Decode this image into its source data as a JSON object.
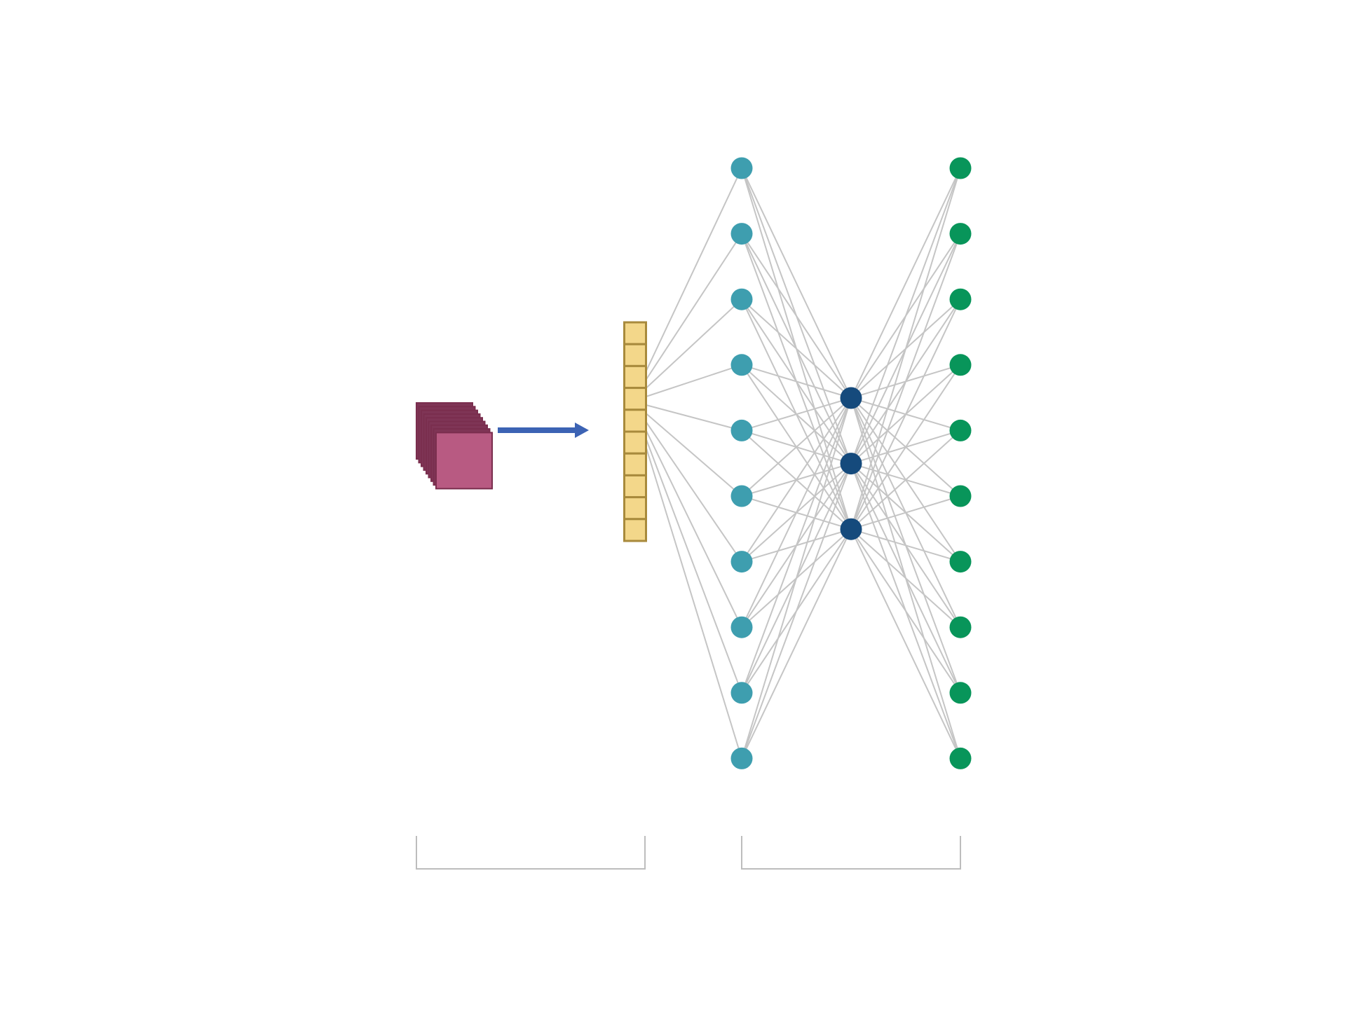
{
  "diagram": {
    "colors": {
      "background": "#ffffff",
      "feature_map_front": "#b85a82",
      "feature_map_back": "#7f3556",
      "feature_map_stroke": "#7a2e4e",
      "arrow": "#3c63b4",
      "vector_fill": "#f3d78a",
      "vector_stroke": "#a88a3c",
      "input_node": "#3e9eaf",
      "hidden_node": "#154a7c",
      "output_node": "#08955a",
      "edge": "#c5c5c5",
      "bracket": "#bdbdbd"
    },
    "feature_maps": {
      "count": 9
    },
    "flatten_vector": {
      "cells": 10
    },
    "layers": {
      "input_nodes": 10,
      "hidden_nodes": 3,
      "output_nodes": 10
    },
    "brackets": [
      {
        "spans": "feature-extraction"
      },
      {
        "spans": "fully-connected"
      }
    ]
  }
}
